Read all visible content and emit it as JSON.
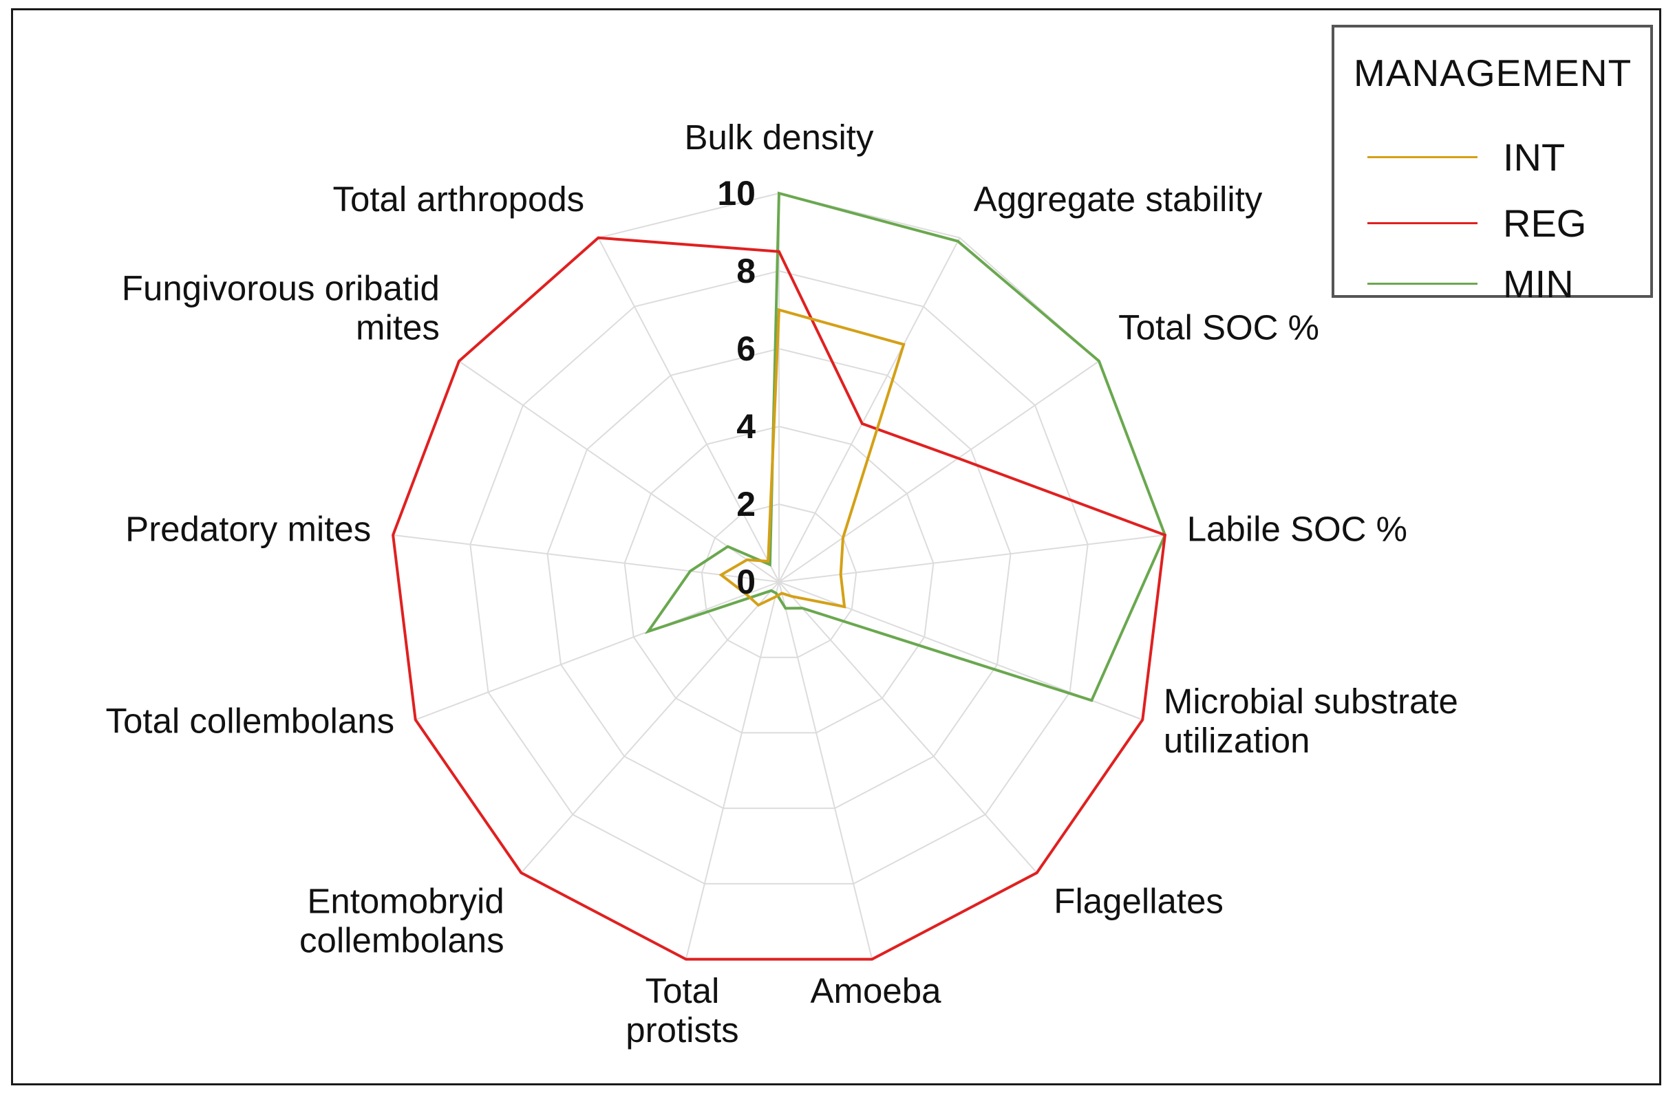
{
  "chart_data": {
    "type": "radar",
    "title": "",
    "axes": [
      "Bulk density",
      "Aggregate stability",
      "Total SOC %",
      "Labile SOC %",
      "Microbial substrate utilization",
      "Flagellates",
      "Amoeba",
      "Total protists",
      "Entomobryid collembolans",
      "Total collembolans",
      "Predatory mites",
      "Fungivorous oribatid mites",
      "Total arthropods"
    ],
    "axis_label_lines": [
      [
        "Bulk density"
      ],
      [
        "Aggregate stability"
      ],
      [
        "Total SOC %"
      ],
      [
        "Labile SOC %"
      ],
      [
        "Microbial substrate",
        "utilization"
      ],
      [
        "Flagellates"
      ],
      [
        "Amoeba"
      ],
      [
        "Total",
        "protists"
      ],
      [
        "Entomobryid",
        "collembolans"
      ],
      [
        "Total collembolans"
      ],
      [
        "Predatory mites"
      ],
      [
        "Fungivorous oribatid",
        "mites"
      ],
      [
        "Total arthropods"
      ]
    ],
    "r_range": [
      0,
      10
    ],
    "ticks": [
      0,
      2,
      4,
      6,
      8,
      10
    ],
    "tick_labels": [
      "0",
      "2",
      "4",
      "6",
      "8",
      "10"
    ],
    "grid": true,
    "legend": {
      "title": "MANAGEMENT",
      "position": "top-right"
    },
    "series": [
      {
        "name": "INT",
        "color": "#d4a017",
        "values": [
          7.0,
          6.9,
          2.0,
          1.6,
          1.8,
          0.5,
          0.3,
          0.4,
          0.8,
          0.9,
          1.5,
          1.0,
          0.6
        ]
      },
      {
        "name": "REG",
        "color": "#e02020",
        "values": [
          8.5,
          4.6,
          5.6,
          10.0,
          10.0,
          10.0,
          10.0,
          10.0,
          10.0,
          10.0,
          10.0,
          10.0,
          10.0
        ]
      },
      {
        "name": "MIN",
        "color": "#6aa84f",
        "values": [
          10.0,
          9.9,
          10.0,
          10.0,
          8.6,
          0.9,
          0.7,
          0.3,
          0.3,
          3.6,
          2.3,
          1.6,
          0.5
        ]
      }
    ]
  }
}
